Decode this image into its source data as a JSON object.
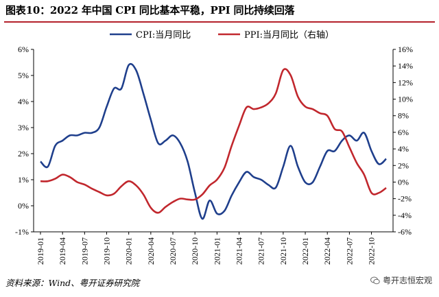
{
  "title": "图表10：2022 年中国 CPI 同比基本平稳，PPI 同比持续回落",
  "source": "资料来源：Wind、粤开证券研究院",
  "watermark": "粤开志恒宏观",
  "colors": {
    "cpi": "#1f3f8c",
    "ppi": "#c1272d",
    "title_rule": "#b4202a"
  },
  "chart_data": {
    "type": "line",
    "x": [
      "2019-01",
      "2019-02",
      "2019-03",
      "2019-04",
      "2019-05",
      "2019-06",
      "2019-07",
      "2019-08",
      "2019-09",
      "2019-10",
      "2019-11",
      "2019-12",
      "2020-01",
      "2020-02",
      "2020-03",
      "2020-04",
      "2020-05",
      "2020-06",
      "2020-07",
      "2020-08",
      "2020-09",
      "2020-10",
      "2020-11",
      "2020-12",
      "2021-01",
      "2021-02",
      "2021-03",
      "2021-04",
      "2021-05",
      "2021-06",
      "2021-07",
      "2021-08",
      "2021-09",
      "2021-10",
      "2021-11",
      "2021-12",
      "2022-01",
      "2022-02",
      "2022-03",
      "2022-04",
      "2022-05",
      "2022-06",
      "2022-07",
      "2022-08",
      "2022-09",
      "2022-10",
      "2022-11",
      "2022-12"
    ],
    "x_tick_labels": [
      "2019-01",
      "2019-04",
      "2019-07",
      "2019-10",
      "2020-01",
      "2020-04",
      "2020-07",
      "2020-10",
      "2021-01",
      "2021-04",
      "2021-07",
      "2021-10",
      "2022-01",
      "2022-04",
      "2022-07",
      "2022-10"
    ],
    "series": [
      {
        "name": "CPI:当月同比",
        "axis": "left",
        "values": [
          1.7,
          1.5,
          2.3,
          2.5,
          2.7,
          2.7,
          2.8,
          2.8,
          3.0,
          3.8,
          4.5,
          4.5,
          5.4,
          5.2,
          4.3,
          3.3,
          2.4,
          2.5,
          2.7,
          2.4,
          1.7,
          0.5,
          -0.5,
          0.2,
          -0.3,
          -0.2,
          0.4,
          0.9,
          1.3,
          1.1,
          1.0,
          0.8,
          0.7,
          1.5,
          2.3,
          1.5,
          0.9,
          0.9,
          1.5,
          2.1,
          2.1,
          2.5,
          2.7,
          2.5,
          2.8,
          2.1,
          1.6,
          1.8
        ]
      },
      {
        "name": "PPI:当月同比（右轴）",
        "axis": "right",
        "values": [
          0.1,
          0.1,
          0.4,
          0.9,
          0.6,
          0.0,
          -0.3,
          -0.8,
          -1.2,
          -1.6,
          -1.4,
          -0.5,
          0.1,
          -0.4,
          -1.5,
          -3.1,
          -3.7,
          -3.0,
          -2.4,
          -2.0,
          -2.1,
          -2.1,
          -1.5,
          -0.4,
          0.3,
          1.7,
          4.4,
          6.8,
          9.0,
          8.8,
          9.0,
          9.5,
          10.7,
          13.5,
          12.9,
          10.3,
          9.1,
          8.8,
          8.3,
          8.0,
          6.4,
          6.1,
          4.2,
          2.3,
          0.9,
          -1.3,
          -1.3,
          -0.7
        ]
      }
    ],
    "y_left": {
      "min": -1,
      "max": 6,
      "step": 1,
      "tick_labels": [
        "-1%",
        "0%",
        "1%",
        "2%",
        "3%",
        "4%",
        "5%",
        "6%"
      ]
    },
    "y_right": {
      "min": -6,
      "max": 16,
      "step": 2,
      "tick_labels": [
        "-6%",
        "-4%",
        "-2%",
        "0%",
        "2%",
        "4%",
        "6%",
        "8%",
        "10%",
        "12%",
        "14%",
        "16%"
      ]
    },
    "legend_position": "top",
    "grid": false
  }
}
